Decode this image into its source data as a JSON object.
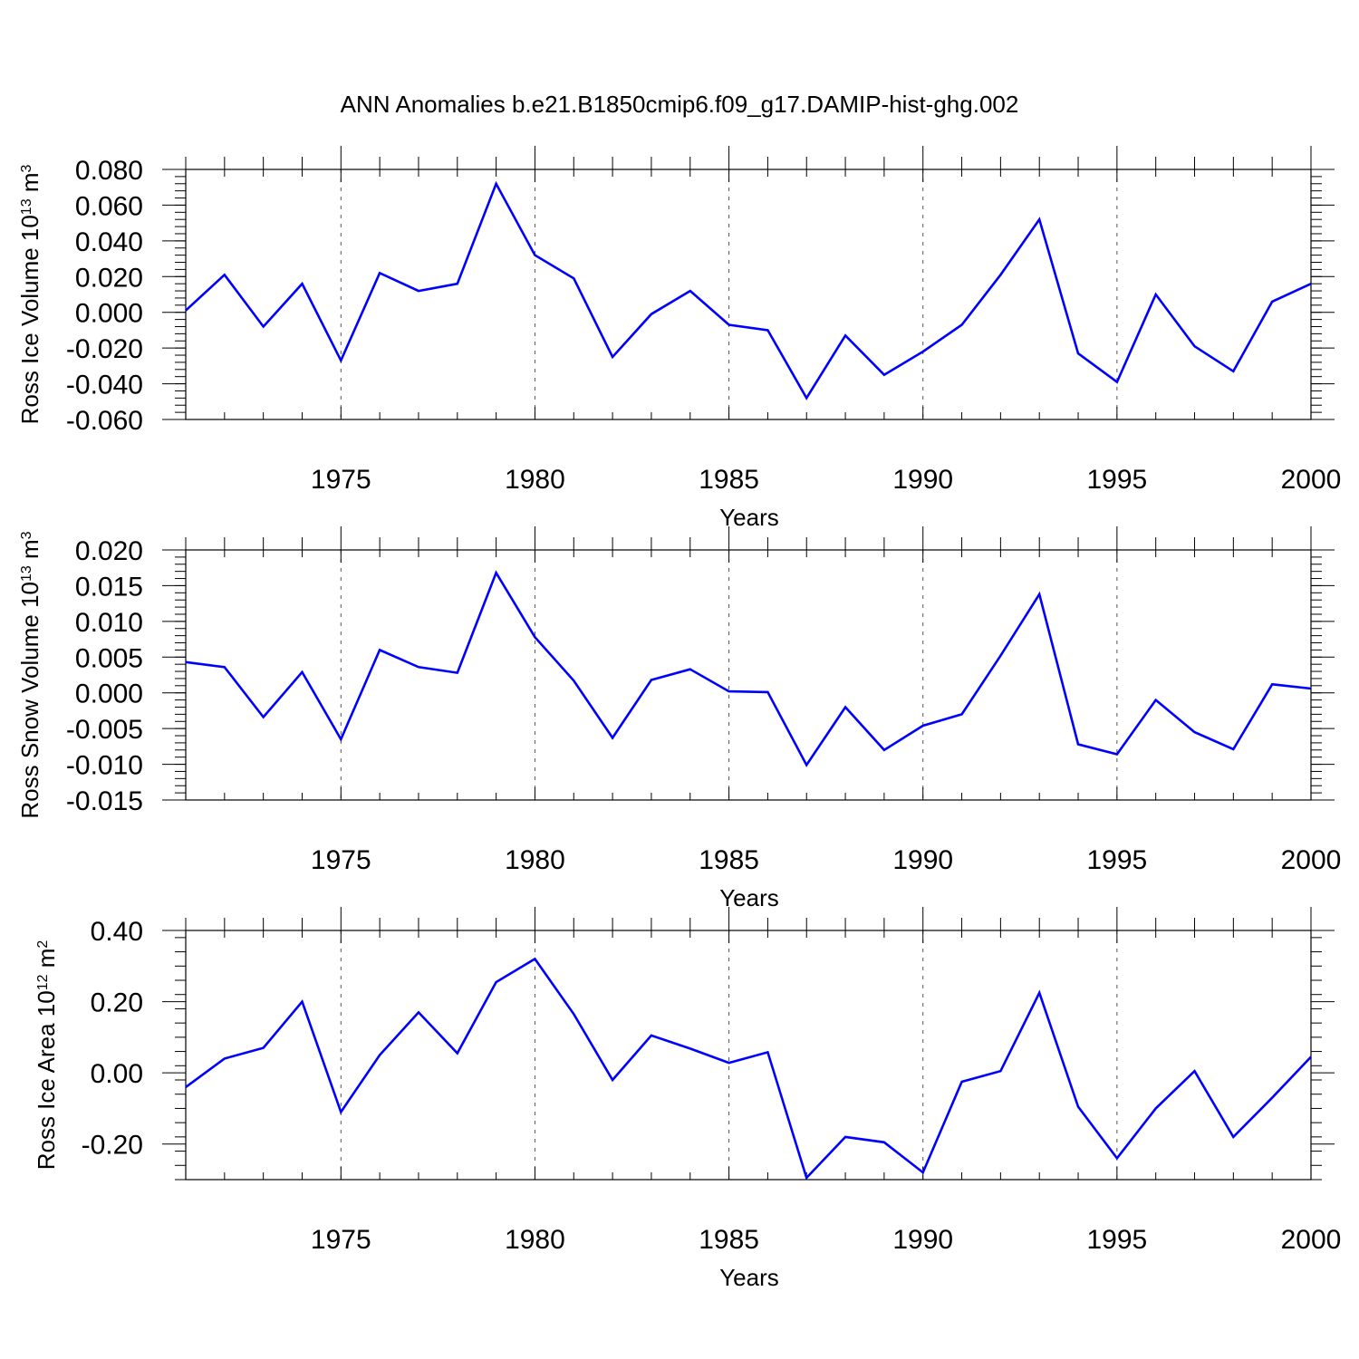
{
  "title": "ANN Anomalies b.e21.B1850cmip6.f09_g17.DAMIP-hist-ghg.002",
  "line_color": "#0000ff",
  "chart_data": [
    {
      "type": "line",
      "ylabel_main": "Ross Ice Volume 10",
      "ylabel_exp": "13",
      "ylabel_unit": "m",
      "ylabel_unit_exp": "3",
      "xlabel": "Years",
      "xlim": [
        1971,
        2000
      ],
      "ylim": [
        -0.06,
        0.08
      ],
      "yticks": [
        -0.06,
        -0.04,
        -0.02,
        0.0,
        0.02,
        0.04,
        0.06,
        0.08
      ],
      "ytick_labels": [
        "-0.060",
        "-0.040",
        "-0.020",
        "0.000",
        "0.020",
        "0.040",
        "0.060",
        "0.080"
      ],
      "xticks": [
        1975,
        1980,
        1985,
        1990,
        1995,
        2000
      ],
      "xtick_labels": [
        "1975",
        "1980",
        "1985",
        "1990",
        "1995",
        "2000"
      ],
      "grid": "vertical-dashed",
      "x": [
        1971,
        1972,
        1973,
        1974,
        1975,
        1976,
        1977,
        1978,
        1979,
        1980,
        1981,
        1982,
        1983,
        1984,
        1985,
        1986,
        1987,
        1988,
        1989,
        1990,
        1991,
        1992,
        1993,
        1994,
        1995,
        1996,
        1997,
        1998,
        1999,
        2000
      ],
      "y": [
        0.001,
        0.021,
        -0.008,
        0.016,
        -0.027,
        0.022,
        0.012,
        0.016,
        0.072,
        0.032,
        0.019,
        -0.025,
        -0.001,
        0.012,
        -0.007,
        -0.01,
        -0.048,
        -0.013,
        -0.035,
        -0.022,
        -0.007,
        0.021,
        0.052,
        -0.023,
        -0.039,
        0.01,
        -0.019,
        -0.033,
        0.006,
        0.016
      ]
    },
    {
      "type": "line",
      "ylabel_main": "Ross Snow Volume 10",
      "ylabel_exp": "13",
      "ylabel_unit": "m",
      "ylabel_unit_exp": "3",
      "xlabel": "Years",
      "xlim": [
        1971,
        2000
      ],
      "ylim": [
        -0.015,
        0.02
      ],
      "yticks": [
        -0.015,
        -0.01,
        -0.005,
        0.0,
        0.005,
        0.01,
        0.015,
        0.02
      ],
      "ytick_labels": [
        "-0.015",
        "-0.010",
        "-0.005",
        "0.000",
        "0.005",
        "0.010",
        "0.015",
        "0.020"
      ],
      "xticks": [
        1975,
        1980,
        1985,
        1990,
        1995,
        2000
      ],
      "xtick_labels": [
        "1975",
        "1980",
        "1985",
        "1990",
        "1995",
        "2000"
      ],
      "grid": "vertical-dashed",
      "x": [
        1971,
        1972,
        1973,
        1974,
        1975,
        1976,
        1977,
        1978,
        1979,
        1980,
        1981,
        1982,
        1983,
        1984,
        1985,
        1986,
        1987,
        1988,
        1989,
        1990,
        1991,
        1992,
        1993,
        1994,
        1995,
        1996,
        1997,
        1998,
        1999,
        2000
      ],
      "y": [
        0.0043,
        0.0036,
        -0.0034,
        0.0029,
        -0.0065,
        0.006,
        0.0036,
        0.0028,
        0.0168,
        0.0078,
        0.0017,
        -0.0063,
        0.0018,
        0.0033,
        0.0002,
        0.0001,
        -0.0101,
        -0.002,
        -0.008,
        -0.0046,
        -0.003,
        0.0052,
        0.0138,
        -0.0072,
        -0.0086,
        -0.001,
        -0.0055,
        -0.0079,
        0.0012,
        0.0006
      ]
    },
    {
      "type": "line",
      "ylabel_main": "Ross Ice Area 10",
      "ylabel_exp": "12",
      "ylabel_unit": "m",
      "ylabel_unit_exp": "2",
      "xlabel": "Years",
      "xlim": [
        1971,
        2000
      ],
      "ylim": [
        -0.3,
        0.4
      ],
      "yticks": [
        -0.2,
        0.0,
        0.2,
        0.4
      ],
      "ytick_labels": [
        "-0.20",
        "0.00",
        "0.20",
        "0.40"
      ],
      "xticks": [
        1975,
        1980,
        1985,
        1990,
        1995,
        2000
      ],
      "xtick_labels": [
        "1975",
        "1980",
        "1985",
        "1990",
        "1995",
        "2000"
      ],
      "grid": "vertical-dashed",
      "x": [
        1971,
        1972,
        1973,
        1974,
        1975,
        1976,
        1977,
        1978,
        1979,
        1980,
        1981,
        1982,
        1983,
        1984,
        1985,
        1986,
        1987,
        1988,
        1989,
        1990,
        1991,
        1992,
        1993,
        1994,
        1995,
        1996,
        1997,
        1998,
        1999,
        2000
      ],
      "y": [
        -0.04,
        0.04,
        0.07,
        0.2,
        -0.11,
        0.05,
        0.17,
        0.055,
        0.255,
        0.32,
        0.165,
        -0.02,
        0.105,
        0.068,
        0.028,
        0.058,
        -0.295,
        -0.18,
        -0.195,
        -0.28,
        -0.025,
        0.005,
        0.225,
        -0.095,
        -0.24,
        -0.1,
        0.005,
        -0.18,
        -0.07,
        0.045
      ]
    }
  ]
}
